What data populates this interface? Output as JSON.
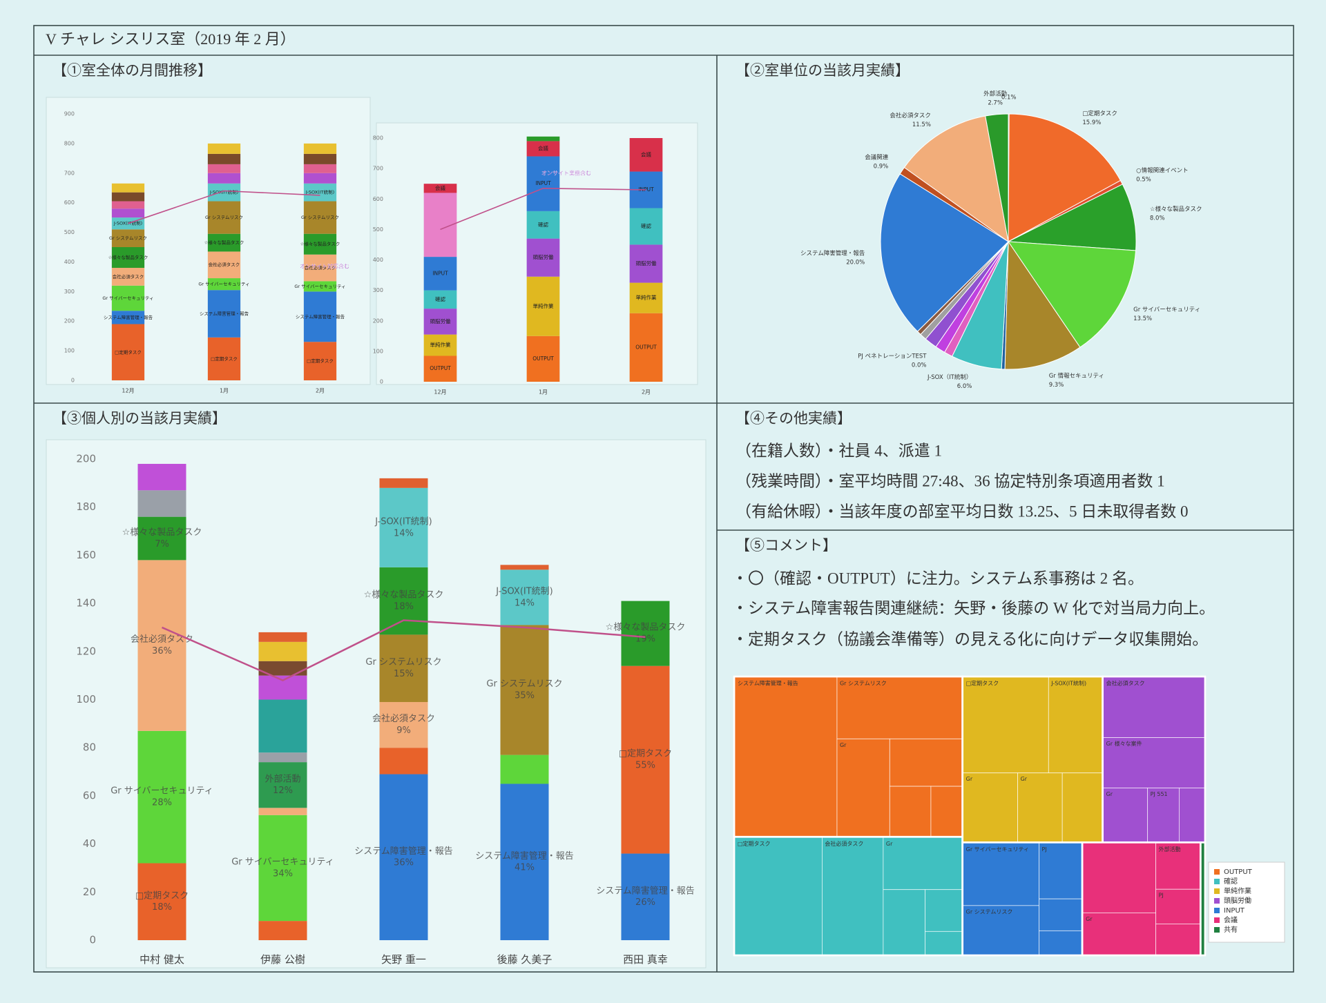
{
  "header": {
    "title": "V チャレ シスリス室（2019 年 2 月）"
  },
  "sections": [
    {
      "title": "【①室全体の月間推移】"
    },
    {
      "title": "【②室単位の当該月実績】"
    },
    {
      "title": "【③個人別の当該月実績】"
    },
    {
      "title": "【④その他実績】"
    },
    {
      "title": "【⑤コメント】"
    }
  ],
  "other": {
    "lines": [
      "（在籍人数）・社員 4、派遣 1",
      "（残業時間）・室平均時間 27:48、36 協定特別条項適用者数 1",
      "（有給休暇）・当該年度の部室平均日数 13.25、5 日未取得者数 0"
    ]
  },
  "comment": {
    "lines": [
      "・〇（確認・OUTPUT）に注力。システム系事務は 2 名。",
      "・システム障害報告関連継続：矢野・後藤の W 化で対当局力向上。",
      "・定期タスク（協議会準備等）の見える化に向けデータ収集開始。"
    ]
  },
  "chart_data": [
    {
      "type": "bar",
      "stacked": true,
      "categories": [
        "12月",
        "1月",
        "2月"
      ],
      "ylim": [
        0,
        900
      ],
      "yticks": [
        0,
        100,
        200,
        300,
        400,
        500,
        600,
        700,
        800,
        900
      ],
      "series": [
        {
          "name": "□定期タスク",
          "color": "#e8622a",
          "values": [
            190,
            145,
            130
          ]
        },
        {
          "name": "システム障害管理・報告",
          "color": "#2f7bd4",
          "values": [
            45,
            160,
            170
          ]
        },
        {
          "name": "Gr サイバーセキュリティ",
          "color": "#5ed63a",
          "values": [
            85,
            40,
            35
          ]
        },
        {
          "name": "会社必須タスク",
          "color": "#f2ad7a",
          "values": [
            60,
            90,
            90
          ]
        },
        {
          "name": "☆様々な製品タスク",
          "color": "#2a9b2a",
          "values": [
            70,
            60,
            70
          ]
        },
        {
          "name": "Gr システムリスク",
          "color": "#a8862a",
          "values": [
            60,
            110,
            110
          ]
        },
        {
          "name": "J-SOX(IT統制)",
          "color": "#5cc8c8",
          "values": [
            40,
            60,
            60
          ]
        },
        {
          "color": "#b050d0",
          "values": [
            30,
            35,
            35
          ]
        },
        {
          "color": "#e06090",
          "values": [
            25,
            30,
            30
          ]
        },
        {
          "color": "#7a4a2a",
          "values": [
            30,
            35,
            35
          ]
        },
        {
          "color": "#e8c030",
          "values": [
            30,
            35,
            35
          ]
        }
      ],
      "line": {
        "color": "#c0508a",
        "values": [
          530,
          640,
          625
        ]
      },
      "note": "オンサイト対応含む"
    },
    {
      "type": "bar",
      "stacked": true,
      "categories": [
        "12月",
        "1月",
        "2月"
      ],
      "ylim": [
        0,
        800
      ],
      "yticks": [
        0,
        100,
        200,
        300,
        400,
        500,
        600,
        700,
        800
      ],
      "series": [
        {
          "name": "OUTPUT",
          "color": "#f07020",
          "values": [
            85,
            150,
            225
          ]
        },
        {
          "name": "単純作業",
          "color": "#e0b820",
          "values": [
            70,
            195,
            100
          ]
        },
        {
          "name": "頭脳労働",
          "color": "#a050d0",
          "values": [
            85,
            125,
            125
          ]
        },
        {
          "name": "確認",
          "color": "#40c0c0",
          "values": [
            60,
            90,
            120
          ]
        },
        {
          "name": "INPUT",
          "color": "#2f7bd4",
          "values": [
            110,
            180,
            120
          ]
        },
        {
          "color": "#e880c8",
          "values": [
            210,
            null,
            null
          ]
        },
        {
          "name": "会議",
          "color": "#d8304a",
          "values": [
            30,
            50,
            110
          ]
        },
        {
          "color": "#2a9b2a",
          "values": [
            null,
            15,
            null
          ]
        }
      ],
      "line": {
        "color": "#c0508a",
        "values": [
          500,
          635,
          630
        ]
      },
      "note": "オンサイト業務含む"
    },
    {
      "type": "pie",
      "categories": [
        null,
        "□定期タスク",
        "○情報関連イベント",
        "☆様々な製品タスク",
        "Gr サイバーセキュリティ",
        "Gr 情報セキュリティ",
        null,
        "J-SOX（IT統制）",
        null,
        null,
        "PJ ペネトレーションTEST",
        null,
        null,
        null,
        "システム障害管理・報告",
        "会議関連",
        "会社必須タスク",
        "外部活動"
      ],
      "values": [
        0.1,
        15.9,
        0.5,
        8.0,
        13.5,
        9.3,
        0.4,
        6.0,
        1.0,
        1.2,
        0.0,
        1.5,
        0.8,
        0.5,
        20.0,
        0.9,
        11.5,
        2.7
      ],
      "value_labels": [
        "0.1%",
        "15.9%",
        "0.5%",
        "8.0%",
        "13.5%",
        "9.3%",
        null,
        "6.0%",
        null,
        null,
        "0.0%",
        null,
        null,
        null,
        "20.0%",
        "0.9%",
        "11.5%",
        "2.7%"
      ],
      "colors": [
        "#d03030",
        "#f06a2a",
        "#e05030",
        "#2aa02a",
        "#5ed63a",
        "#a8862a",
        "#2060a0",
        "#40c0c0",
        "#e060c0",
        "#c040e0",
        "#a050d0",
        "#9050d0",
        "#a0a0a0",
        "#8a5a40",
        "#2f7bd4",
        "#c05020",
        "#f2ad7a",
        "#2a9a2a"
      ]
    },
    {
      "type": "bar",
      "stacked": true,
      "categories": [
        "中村 健太",
        "伊藤 公樹",
        "矢野 重一",
        "後藤 久美子",
        "西田 真幸"
      ],
      "ylim": [
        0,
        200
      ],
      "yticks": [
        0,
        20,
        40,
        60,
        80,
        100,
        120,
        140,
        160,
        180,
        200
      ],
      "series": [
        {
          "name": "システム障害管理・報告",
          "color": "#2f7bd4",
          "values": [
            null,
            null,
            69,
            65,
            36
          ],
          "segment_labels": [
            null,
            null,
            "36%",
            "41%",
            "26%"
          ]
        },
        {
          "name": "□定期タスク",
          "color": "#e8622a",
          "values": [
            32,
            8,
            11,
            null,
            78
          ],
          "segment_labels": [
            "18%",
            null,
            null,
            null,
            "55%"
          ]
        },
        {
          "name": "Gr サイバーセキュリティ",
          "color": "#5ed63a",
          "values": [
            55,
            44,
            null,
            12,
            null
          ],
          "segment_labels": [
            "28%",
            "34%",
            null,
            null,
            null
          ]
        },
        {
          "name": "会社必須タスク",
          "color": "#f2ad7a",
          "values": [
            71,
            3,
            19,
            null,
            null
          ],
          "segment_labels": [
            "36%",
            null,
            "9%",
            null,
            null
          ]
        },
        {
          "name": "外部活動",
          "color": "#2e9b50",
          "values": [
            null,
            19,
            null,
            null,
            null
          ],
          "segment_labels": [
            null,
            "12%",
            null,
            null,
            null
          ]
        },
        {
          "name": "Gr システムリスク",
          "color": "#a8862a",
          "values": [
            null,
            null,
            28,
            54,
            null
          ],
          "segment_labels": [
            null,
            null,
            "15%",
            "35%",
            null
          ]
        },
        {
          "name": "☆様々な製品タスク",
          "color": "#2a9b2a",
          "values": [
            18,
            null,
            28,
            null,
            27
          ],
          "segment_labels": [
            "7%",
            null,
            "18%",
            null,
            "19%"
          ]
        },
        {
          "name": "J-SOX(IT統制)",
          "color": "#5cc8c8",
          "values": [
            null,
            null,
            33,
            23,
            null
          ],
          "segment_labels": [
            null,
            null,
            "14%",
            "14%",
            null
          ]
        },
        {
          "color": "#9aa0a8",
          "values": [
            11,
            4,
            null,
            null,
            null
          ]
        },
        {
          "color": "#2aa39a",
          "values": [
            null,
            22,
            null,
            null,
            null
          ]
        },
        {
          "color": "#c050d8",
          "values": [
            11,
            10,
            null,
            null,
            null
          ]
        },
        {
          "color": "#7a4a30",
          "values": [
            null,
            6,
            null,
            null,
            null
          ]
        },
        {
          "color": "#e8c030",
          "values": [
            null,
            8,
            null,
            null,
            null
          ]
        },
        {
          "color": "#e06030",
          "values": [
            null,
            4,
            4,
            2,
            null
          ]
        }
      ],
      "line": {
        "color": "#c0508a",
        "values": [
          130,
          108,
          133,
          130,
          126
        ]
      }
    },
    {
      "type": "treemap",
      "groups": [
        {
          "name": "OUTPUT",
          "color": "#f07020",
          "children": [
            {
              "label": "システム障害管理・報告",
              "value": 95
            },
            {
              "label": "Gr システムリスク",
              "value": 45
            },
            {
              "label": "Gr",
              "value": 30
            },
            {
              "label": null,
              "value": 20
            },
            {
              "label": null,
              "value": 12
            },
            {
              "label": null,
              "value": 9
            }
          ]
        },
        {
          "name": "確認",
          "color": "#40c0c0",
          "children": [
            {
              "label": "□定期タスク",
              "value": 60
            },
            {
              "label": "会社必須タスク",
              "value": 42
            },
            {
              "label": "Gr",
              "value": 24
            },
            {
              "label": null,
              "value": 16
            },
            {
              "label": null,
              "value": 9
            },
            {
              "label": null,
              "value": 5
            }
          ]
        },
        {
          "name": "単純作業",
          "color": "#e0b820",
          "children": [
            {
              "label": "□定期タスク",
              "value": 48
            },
            {
              "label": "J-SOX(IT統制)",
              "value": 30
            },
            {
              "label": "Gr",
              "value": 22
            },
            {
              "label": "Gr",
              "value": 18
            },
            {
              "label": null,
              "value": 16
            }
          ]
        },
        {
          "name": "頭脳労働",
          "color": "#a050d0",
          "children": [
            {
              "label": "会社必須タスク",
              "value": 36
            },
            {
              "label": "Gr 様々な案件",
              "value": 30
            },
            {
              "label": "Gr",
              "value": 14
            },
            {
              "label": "PJ 551",
              "value": 10
            },
            {
              "label": null,
              "value": 8
            }
          ]
        },
        {
          "name": "INPUT",
          "color": "#2f7bd4",
          "children": [
            {
              "label": "Gr サイバーセキュリティ",
              "value": 28
            },
            {
              "label": "Gr システムリスク",
              "value": 22
            },
            {
              "label": "PJ",
              "value": 14
            },
            {
              "label": null,
              "value": 8
            },
            {
              "label": null,
              "value": 6
            }
          ]
        },
        {
          "name": "会議",
          "color": "#e8307a",
          "children": [
            {
              "label": null,
              "value": 30
            },
            {
              "label": "Gr",
              "value": 18
            },
            {
              "label": "外部活動",
              "value": 12
            },
            {
              "label": "PJ",
              "value": 9
            },
            {
              "label": null,
              "value": 8
            }
          ]
        },
        {
          "name": "共有",
          "color": "#208040",
          "children": [
            {
              "label": null,
              "value": 3
            }
          ]
        }
      ]
    }
  ]
}
